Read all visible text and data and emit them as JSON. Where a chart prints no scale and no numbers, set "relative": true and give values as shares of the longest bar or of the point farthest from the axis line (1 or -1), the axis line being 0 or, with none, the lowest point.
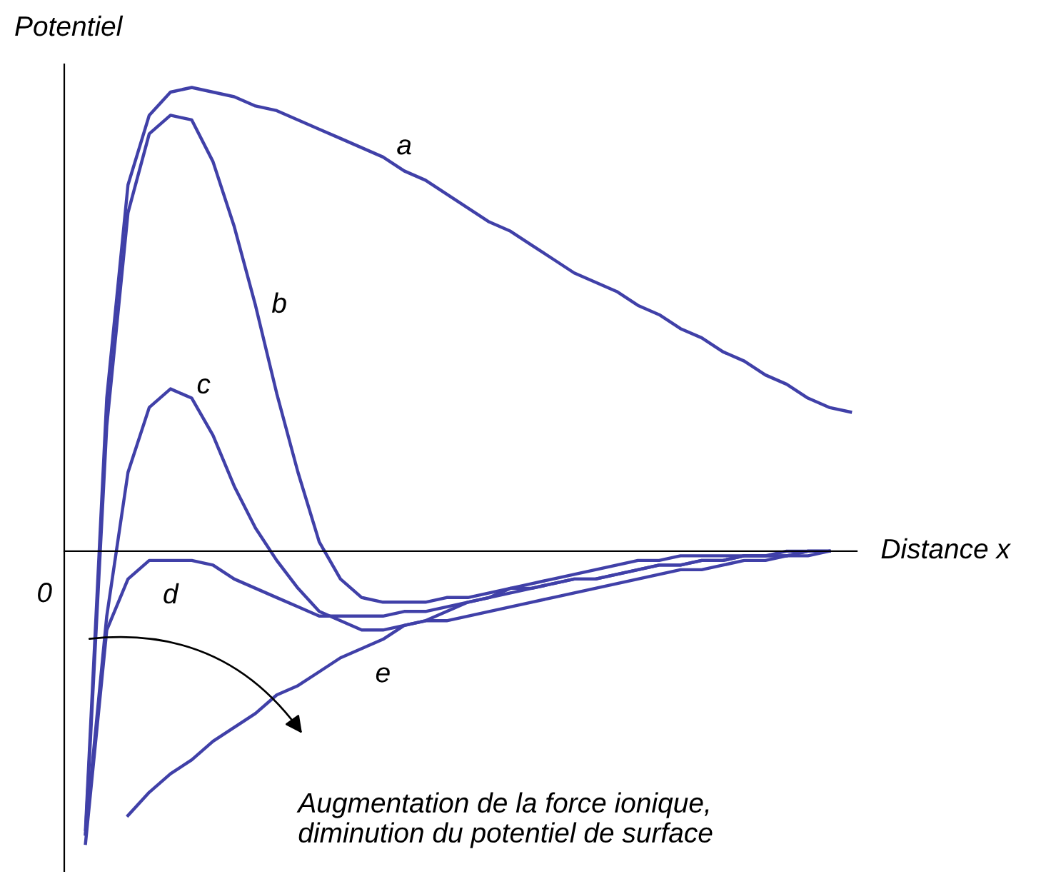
{
  "chart_data": {
    "type": "line",
    "relative": true,
    "xlabel": "Distance x",
    "ylabel": "Potentiel",
    "categories": [
      null,
      null,
      null,
      null,
      null,
      null,
      null,
      null,
      null,
      null,
      null,
      null,
      null,
      null,
      null,
      null,
      null,
      null,
      null,
      null,
      null,
      null,
      null,
      null,
      null,
      null,
      null,
      null,
      null,
      null,
      null,
      null,
      null,
      null,
      null,
      null,
      null
    ],
    "series": [
      {
        "name": "a",
        "color": "#4040a8",
        "values": [
          -0.6,
          0.33,
          0.79,
          0.94,
          0.99,
          1.0,
          0.99,
          0.98,
          0.96,
          0.95,
          0.93,
          0.91,
          0.89,
          0.87,
          0.85,
          0.82,
          0.8,
          0.77,
          0.74,
          0.71,
          0.69,
          0.66,
          0.63,
          0.6,
          0.58,
          0.56,
          0.53,
          0.51,
          0.48,
          0.46,
          0.43,
          0.41,
          0.38,
          0.36,
          0.33,
          0.31,
          0.3
        ]
      },
      {
        "name": "b",
        "color": "#4040a8",
        "values": [
          -0.61,
          0.27,
          0.73,
          0.9,
          0.94,
          0.93,
          0.84,
          0.7,
          0.53,
          0.34,
          0.17,
          0.02,
          -0.06,
          -0.1,
          -0.11,
          -0.11,
          -0.11,
          -0.1,
          -0.1,
          -0.09,
          -0.08,
          -0.08,
          -0.07,
          -0.06,
          -0.06,
          -0.05,
          -0.04,
          -0.03,
          -0.03,
          -0.02,
          -0.02,
          -0.01,
          -0.01,
          -0.01,
          0.0,
          0.0,
          null
        ]
      },
      {
        "name": "c",
        "color": "#4040a8",
        "values": [
          -0.61,
          -0.14,
          0.17,
          0.31,
          0.35,
          0.33,
          0.25,
          0.14,
          0.05,
          -0.02,
          -0.08,
          -0.13,
          -0.15,
          -0.17,
          -0.17,
          -0.16,
          -0.15,
          -0.15,
          -0.14,
          -0.13,
          -0.12,
          -0.11,
          -0.1,
          -0.09,
          -0.08,
          -0.07,
          -0.06,
          -0.05,
          -0.04,
          -0.04,
          -0.03,
          -0.02,
          -0.02,
          -0.01,
          -0.01,
          0.0,
          null
        ]
      },
      {
        "name": "d",
        "color": "#4040a8",
        "values": [
          -0.63,
          -0.17,
          -0.06,
          -0.02,
          -0.02,
          -0.02,
          -0.03,
          -0.06,
          -0.08,
          -0.1,
          -0.12,
          -0.14,
          -0.14,
          -0.14,
          -0.14,
          -0.13,
          -0.13,
          -0.12,
          -0.11,
          -0.1,
          -0.09,
          -0.08,
          -0.07,
          -0.06,
          -0.06,
          -0.05,
          -0.04,
          -0.03,
          -0.03,
          -0.02,
          -0.02,
          -0.01,
          -0.01,
          -0.01,
          0.0,
          0.0,
          null
        ]
      },
      {
        "name": "e",
        "color": "#4040a8",
        "values": [
          null,
          null,
          -0.57,
          -0.52,
          -0.48,
          -0.45,
          -0.41,
          -0.38,
          -0.35,
          -0.31,
          -0.29,
          -0.26,
          -0.23,
          -0.21,
          -0.19,
          -0.16,
          -0.15,
          -0.13,
          -0.11,
          -0.1,
          -0.08,
          -0.07,
          -0.06,
          -0.05,
          -0.04,
          -0.03,
          -0.02,
          -0.02,
          -0.01,
          -0.01,
          -0.01,
          -0.01,
          -0.01,
          0.0,
          0.0,
          0.0,
          null
        ]
      }
    ],
    "annotations": [
      "0",
      "Augmentation de la force ionique,\ndiminution du potentiel de surface"
    ]
  }
}
